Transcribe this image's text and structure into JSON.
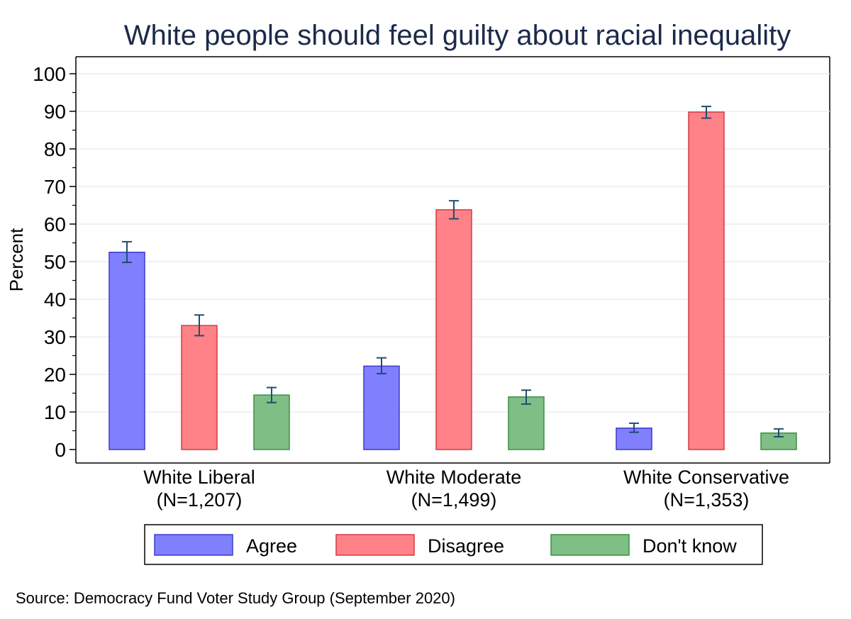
{
  "chart_data": {
    "type": "bar",
    "title": "White people should feel guilty about racial inequality",
    "ylabel": "Percent",
    "xlabel": "",
    "ylim": [
      0,
      100
    ],
    "yticks": [
      0,
      10,
      20,
      30,
      40,
      50,
      60,
      70,
      80,
      90,
      100
    ],
    "grid": true,
    "legend_position": "bottom",
    "categories": [
      {
        "name": "White Liberal",
        "n": "(N=1,207)"
      },
      {
        "name": "White Moderate",
        "n": "(N=1,499)"
      },
      {
        "name": "White Conservative",
        "n": "(N=1,353)"
      }
    ],
    "series": [
      {
        "name": "Agree",
        "color": "#8080ff",
        "stroke": "#3a3acc",
        "values": [
          52.5,
          22.2,
          5.7
        ],
        "ci_low": [
          49.8,
          20.2,
          4.6
        ],
        "ci_high": [
          55.3,
          24.4,
          7.0
        ]
      },
      {
        "name": "Disagree",
        "color": "#ff8288",
        "stroke": "#d63a46",
        "values": [
          33.0,
          63.8,
          89.8
        ],
        "ci_low": [
          30.3,
          61.4,
          88.2
        ],
        "ci_high": [
          35.8,
          66.2,
          91.3
        ]
      },
      {
        "name": "Don't know",
        "color": "#7fbf86",
        "stroke": "#3a8f44",
        "values": [
          14.5,
          14.0,
          4.4
        ],
        "ci_low": [
          12.5,
          12.1,
          3.4
        ],
        "ci_high": [
          16.5,
          15.8,
          5.5
        ]
      }
    ],
    "errorbar_color": "#1f4e6e",
    "source": "Source: Democracy Fund Voter Study Group (September 2020)"
  }
}
